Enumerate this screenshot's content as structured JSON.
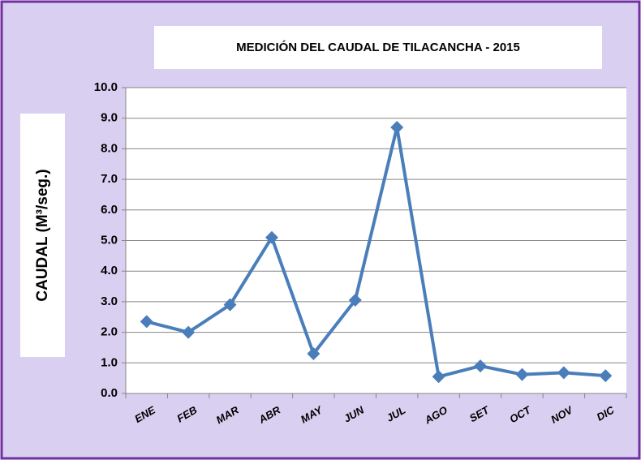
{
  "chart_data": {
    "type": "line",
    "title": "MEDICIÓN DEL CAUDAL DE TILACANCHA - 2015",
    "y_label": "CAUDAL (M³/seg.)",
    "categories": [
      "ENE",
      "FEB",
      "MAR",
      "ABR",
      "MAY",
      "JUN",
      "JUL",
      "AGO",
      "SET",
      "OCT",
      "NOV",
      "DIC"
    ],
    "series": [
      {
        "name": "Caudal",
        "color": "#4a7ebb",
        "values": [
          2.35,
          2.0,
          2.9,
          5.1,
          1.3,
          3.05,
          8.7,
          0.55,
          0.9,
          0.62,
          0.68,
          0.58
        ]
      }
    ],
    "ylim": [
      0,
      10
    ],
    "yticks": [
      {
        "value": 0,
        "label": "0.0"
      },
      {
        "value": 1,
        "label": "1.0"
      },
      {
        "value": 2,
        "label": "2.0"
      },
      {
        "value": 3,
        "label": "3.0"
      },
      {
        "value": 4,
        "label": "4.0"
      },
      {
        "value": 5,
        "label": "5.0"
      },
      {
        "value": 6,
        "label": "6.0"
      },
      {
        "value": 7,
        "label": "7.0"
      },
      {
        "value": 8,
        "label": "8.0"
      },
      {
        "value": 9,
        "label": "9.0"
      },
      {
        "value": 10,
        "label": "10.0"
      }
    ],
    "grid": true
  }
}
